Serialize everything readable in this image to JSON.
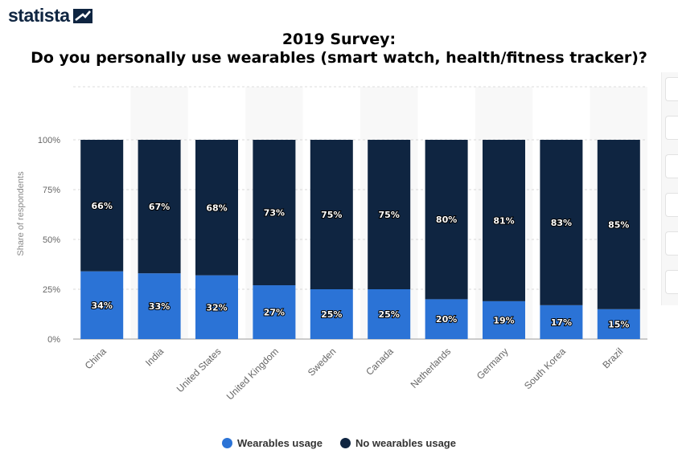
{
  "brand": {
    "name": "statista"
  },
  "title_lines": [
    "2019 Survey:",
    "Do you personally use wearables (smart watch, health/fitness tracker)?"
  ],
  "colors": {
    "wearables": "#2b73d6",
    "no_wearables": "#0f2541"
  },
  "chart_data": {
    "type": "bar",
    "stacked": true,
    "categories": [
      "China",
      "India",
      "United States",
      "United Kingdom",
      "Sweden",
      "Canada",
      "Netherlands",
      "Germany",
      "South Korea",
      "Brazil"
    ],
    "series": [
      {
        "name": "Wearables usage",
        "values": [
          34,
          33,
          32,
          27,
          25,
          25,
          20,
          19,
          17,
          15
        ]
      },
      {
        "name": "No wearables usage",
        "values": [
          66,
          67,
          68,
          73,
          75,
          75,
          80,
          81,
          83,
          85
        ]
      }
    ],
    "ylabel": "Share of respondents",
    "ylim": [
      0,
      100
    ],
    "yticks": [
      "0%",
      "25%",
      "50%",
      "75%",
      "100%"
    ],
    "data_label_suffix": "%",
    "grid": true,
    "legend_position": "bottom"
  }
}
